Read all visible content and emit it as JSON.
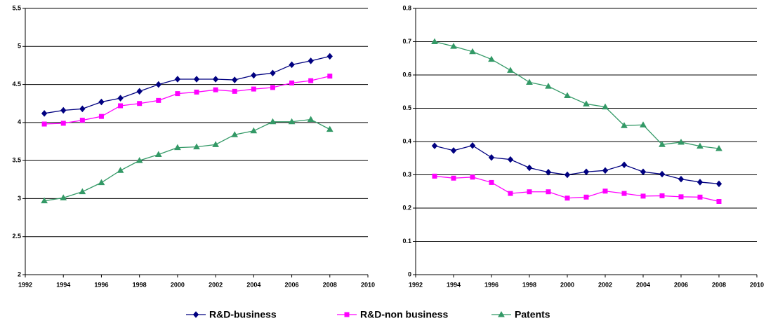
{
  "chart_data": [
    {
      "type": "line",
      "x": [
        1993,
        1994,
        1995,
        1996,
        1997,
        1998,
        1999,
        2000,
        2001,
        2002,
        2003,
        2004,
        2005,
        2006,
        2007,
        2008
      ],
      "xlim": [
        1992,
        2010
      ],
      "xticks": [
        1992,
        1994,
        1996,
        1998,
        2000,
        2002,
        2004,
        2006,
        2008,
        2010
      ],
      "ylim": [
        2,
        5.5
      ],
      "yticks": [
        2,
        2.5,
        3,
        3.5,
        4,
        4.5,
        5,
        5.5
      ],
      "grid": true,
      "series": [
        {
          "name": "R&D-business",
          "color": "#000080",
          "marker": "diamond",
          "values": [
            4.12,
            4.16,
            4.18,
            4.27,
            4.32,
            4.41,
            4.5,
            4.57,
            4.57,
            4.57,
            4.56,
            4.62,
            4.65,
            4.76,
            4.81,
            4.87
          ]
        },
        {
          "name": "R&D-non business",
          "color": "#ff00ff",
          "marker": "square",
          "values": [
            3.98,
            3.99,
            4.03,
            4.08,
            4.22,
            4.25,
            4.29,
            4.38,
            4.4,
            4.43,
            4.41,
            4.44,
            4.46,
            4.52,
            4.55,
            4.61
          ]
        },
        {
          "name": "Patents",
          "color": "#339966",
          "marker": "triangle",
          "values": [
            2.97,
            3.01,
            3.09,
            3.21,
            3.37,
            3.5,
            3.58,
            3.67,
            3.68,
            3.71,
            3.84,
            3.89,
            4.01,
            4.01,
            4.04,
            3.91
          ]
        }
      ]
    },
    {
      "type": "line",
      "x": [
        1993,
        1994,
        1995,
        1996,
        1997,
        1998,
        1999,
        2000,
        2001,
        2002,
        2003,
        2004,
        2005,
        2006,
        2007,
        2008
      ],
      "xlim": [
        1992,
        2010
      ],
      "xticks": [
        1992,
        1994,
        1996,
        1998,
        2000,
        2002,
        2004,
        2006,
        2008,
        2010
      ],
      "ylim": [
        0,
        0.8
      ],
      "yticks": [
        0,
        0.1,
        0.2,
        0.3,
        0.4,
        0.5,
        0.6,
        0.7,
        0.8
      ],
      "grid": true,
      "series": [
        {
          "name": "R&D-business",
          "color": "#000080",
          "marker": "diamond",
          "values": [
            0.387,
            0.373,
            0.388,
            0.352,
            0.346,
            0.321,
            0.308,
            0.3,
            0.309,
            0.313,
            0.33,
            0.309,
            0.302,
            0.287,
            0.278,
            0.273
          ]
        },
        {
          "name": "R&D-non business",
          "color": "#ff00ff",
          "marker": "square",
          "values": [
            0.296,
            0.29,
            0.293,
            0.277,
            0.244,
            0.249,
            0.249,
            0.23,
            0.233,
            0.251,
            0.244,
            0.236,
            0.237,
            0.234,
            0.233,
            0.22
          ]
        },
        {
          "name": "Patents",
          "color": "#339966",
          "marker": "triangle",
          "values": [
            0.7,
            0.686,
            0.67,
            0.647,
            0.614,
            0.578,
            0.566,
            0.538,
            0.513,
            0.504,
            0.448,
            0.45,
            0.391,
            0.398,
            0.386,
            0.379
          ]
        }
      ]
    }
  ]
}
